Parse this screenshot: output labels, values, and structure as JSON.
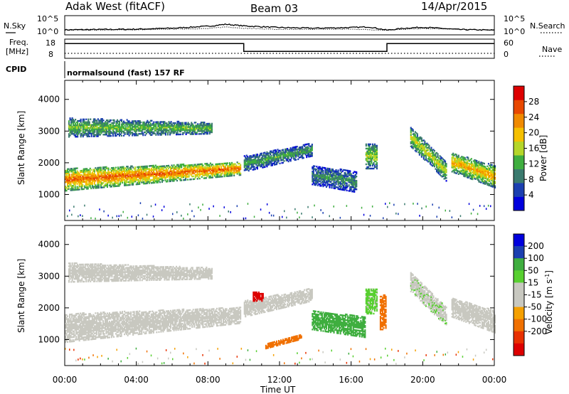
{
  "header": {
    "station": "Adak West (fitACF)",
    "beam": "Beam 03",
    "date": "14/Apr/2015"
  },
  "panel_labels": {
    "nsky": "N.Sky",
    "nsearch": "N.Search",
    "freq_line1": "Freq.",
    "freq_line2": "[MHz]",
    "nave": "Nave",
    "cpid": "CPID",
    "program": "normalsound (fast) 157 RF"
  },
  "noise_panel": {
    "left_ticks": [
      "10^5",
      "10^0"
    ],
    "right_ticks": [
      "10^5",
      "10^0"
    ]
  },
  "freq_panel": {
    "left_ticks": [
      "18",
      "8"
    ],
    "right_ticks": [
      "60",
      "0"
    ]
  },
  "x_axis": {
    "label": "Time UT",
    "ticks": [
      "00:00",
      "04:00",
      "08:00",
      "12:00",
      "16:00",
      "20:00",
      "00:00"
    ]
  },
  "colors": {
    "power_scale": [
      "#0000dd",
      "#1b3fb0",
      "#3a7a6e",
      "#3fae3f",
      "#b5d629",
      "#f5c000",
      "#f08a00",
      "#e84800",
      "#dd0000"
    ],
    "velocity_scale": [
      "#0000dd",
      "#1b3fb0",
      "#3fae3f",
      "#58d030",
      "#c8c8c0",
      "#c8c8c0",
      "#f5a000",
      "#f07000",
      "#e83000",
      "#dd0000"
    ]
  },
  "chart_data": [
    {
      "type": "line",
      "title": "",
      "xlabel": "",
      "ylabel": "N.Sky",
      "x_range_hours": [
        0,
        24
      ],
      "ylim_log10": [
        0,
        5
      ],
      "series": [
        {
          "name": "N.Sky",
          "x": [
            0,
            2,
            4,
            6,
            8,
            9,
            10,
            12,
            14,
            16,
            17,
            18,
            19,
            20,
            22,
            24
          ],
          "values": [
            1.1,
            1.2,
            1.3,
            1.6,
            2.2,
            2.8,
            2.3,
            1.8,
            1.6,
            1.8,
            2.0,
            1.0,
            1.6,
            1.9,
            1.2,
            1.0
          ]
        },
        {
          "name": "N.Search",
          "x": [
            0,
            4,
            8,
            9,
            10,
            12,
            16,
            18,
            20,
            24
          ],
          "values": [
            1.0,
            1.1,
            1.5,
            2.0,
            1.6,
            1.2,
            1.3,
            1.0,
            1.5,
            1.0
          ]
        }
      ]
    },
    {
      "type": "line",
      "title": "",
      "xlabel": "",
      "ylabel": "Freq. [MHz]",
      "x_range_hours": [
        0,
        24
      ],
      "ylim_left": [
        8,
        18
      ],
      "ylim_right": [
        0,
        60
      ],
      "series": [
        {
          "name": "Freq.",
          "x": [
            0,
            10,
            10,
            18,
            18,
            24
          ],
          "values": [
            16.5,
            16.5,
            11.5,
            11.5,
            16.5,
            16.5
          ]
        },
        {
          "name": "Nave",
          "x": [
            0,
            24
          ],
          "values": [
            8,
            8
          ]
        }
      ]
    },
    {
      "type": "heatmap",
      "title": "",
      "xlabel": "Time UT",
      "ylabel": "Slant Range [km]",
      "x_range_hours": [
        0,
        24
      ],
      "ylim": [
        180,
        4600
      ],
      "yticks": [
        1000,
        2000,
        3000,
        4000
      ],
      "colorbar": {
        "label": "Power [dB]",
        "ticks": [
          4,
          8,
          12,
          16,
          20,
          24,
          28
        ],
        "range": [
          0,
          32
        ]
      },
      "regions": [
        {
          "t0": 0,
          "t1": 9.8,
          "r0_start": 1100,
          "r1_start": 1800,
          "r0_end": 1600,
          "r1_end": 2000,
          "core_db": 26,
          "edge_db": 10
        },
        {
          "t0": 0.2,
          "t1": 8.2,
          "r0_start": 2800,
          "r1_start": 3400,
          "r0_end": 2900,
          "r1_end": 3250,
          "core_db": 14,
          "edge_db": 6
        },
        {
          "t0": 10,
          "t1": 13.8,
          "r0_start": 1700,
          "r1_start": 2200,
          "r0_end": 2200,
          "r1_end": 2600,
          "core_db": 12,
          "edge_db": 4
        },
        {
          "t0": 13.8,
          "t1": 16.3,
          "r0_start": 1300,
          "r1_start": 1900,
          "r0_end": 1050,
          "r1_end": 1700,
          "core_db": 10,
          "edge_db": 4
        },
        {
          "t0": 16.8,
          "t1": 17.4,
          "r0_start": 1800,
          "r1_start": 2600,
          "r0_end": 1800,
          "r1_end": 2600,
          "core_db": 16,
          "edge_db": 6
        },
        {
          "t0": 19.3,
          "t1": 21.3,
          "r0_start": 2500,
          "r1_start": 3100,
          "r0_end": 1400,
          "r1_end": 2000,
          "core_db": 18,
          "edge_db": 6
        },
        {
          "t0": 21.6,
          "t1": 24,
          "r0_start": 1700,
          "r1_start": 2300,
          "r0_end": 1200,
          "r1_end": 1900,
          "core_db": 22,
          "edge_db": 8
        }
      ]
    },
    {
      "type": "heatmap",
      "title": "",
      "xlabel": "Time UT",
      "ylabel": "Slant Range [km]",
      "x_range_hours": [
        0,
        24
      ],
      "ylim": [
        180,
        4600
      ],
      "yticks": [
        1000,
        2000,
        3000,
        4000
      ],
      "colorbar": {
        "label": "Velocity [m s^-1]",
        "ticks": [
          200,
          100,
          50,
          15,
          -15,
          -50,
          -100,
          -200
        ],
        "range": [
          -250,
          250
        ]
      },
      "regions": [
        {
          "t0": 0,
          "t1": 9.8,
          "r0_start": 900,
          "r1_start": 1800,
          "r0_end": 1500,
          "r1_end": 2000,
          "velocity": 0
        },
        {
          "t0": 0.2,
          "t1": 8.2,
          "r0_start": 2800,
          "r1_start": 3400,
          "r0_end": 2900,
          "r1_end": 3250,
          "velocity": 0
        },
        {
          "t0": 10,
          "t1": 13.8,
          "r0_start": 1700,
          "r1_start": 2200,
          "r0_end": 2200,
          "r1_end": 2600,
          "velocity": 0
        },
        {
          "t0": 10.5,
          "t1": 11.1,
          "r0_start": 2200,
          "r1_start": 2500,
          "r0_end": 2200,
          "r1_end": 2500,
          "velocity": -220
        },
        {
          "t0": 11.2,
          "t1": 13.2,
          "r0_start": 700,
          "r1_start": 850,
          "r0_end": 1000,
          "r1_end": 1150,
          "velocity": -80
        },
        {
          "t0": 13.8,
          "t1": 16.8,
          "r0_start": 1300,
          "r1_start": 1900,
          "r0_end": 1050,
          "r1_end": 1700,
          "velocity": 120
        },
        {
          "t0": 16.8,
          "t1": 17.4,
          "r0_start": 1800,
          "r1_start": 2600,
          "r0_end": 1800,
          "r1_end": 2600,
          "velocity": 60
        },
        {
          "t0": 17.6,
          "t1": 17.9,
          "r0_start": 1300,
          "r1_start": 2400,
          "r0_end": 1300,
          "r1_end": 2400,
          "velocity": -70
        },
        {
          "t0": 19.3,
          "t1": 21.3,
          "r0_start": 2500,
          "r1_start": 3100,
          "r0_end": 1400,
          "r1_end": 2000,
          "velocity": 40
        },
        {
          "t0": 21.6,
          "t1": 24,
          "r0_start": 1700,
          "r1_start": 2300,
          "r0_end": 1200,
          "r1_end": 1900,
          "velocity": 0
        }
      ]
    }
  ]
}
